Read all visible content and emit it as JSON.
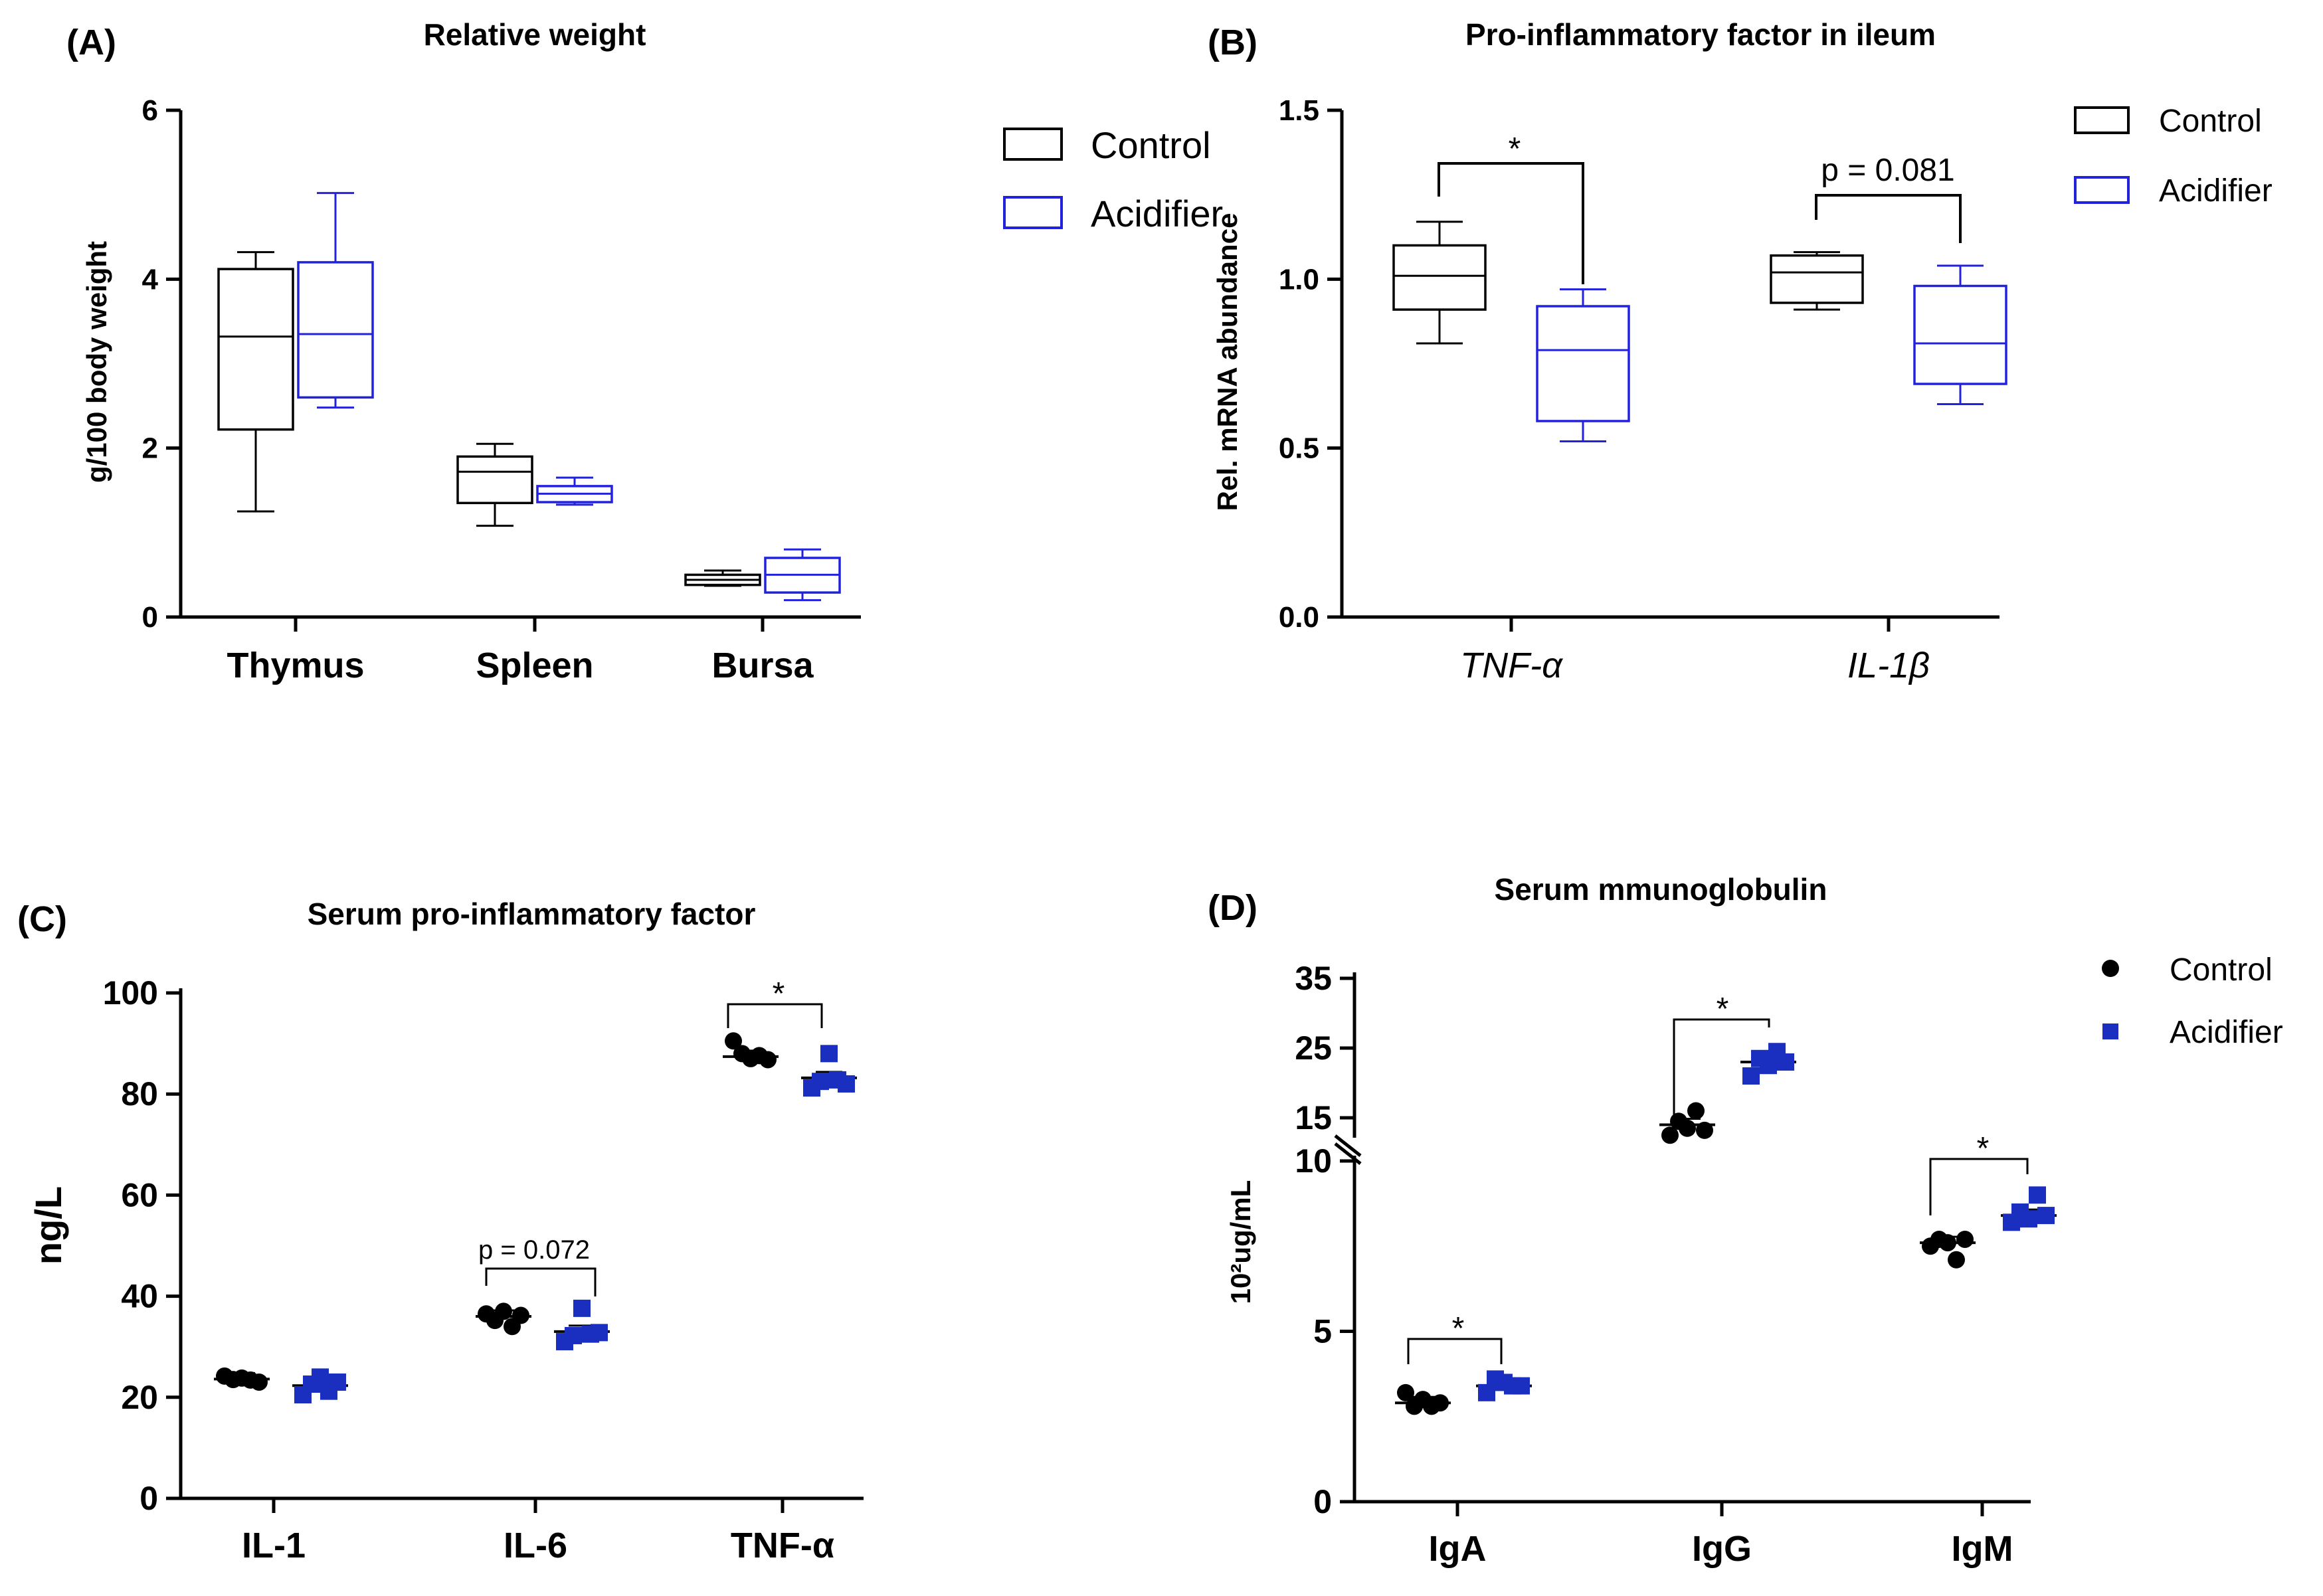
{
  "colors": {
    "control": "#000000",
    "acidifier_line": "#2222dd",
    "acidifier_fill": "#1a2fc0"
  },
  "chart_data": [
    {
      "panel_label": "(A)",
      "type": "box",
      "title": "Relative weight",
      "ylabel": "g/100 body weight",
      "ylim": [
        0,
        6
      ],
      "yticks": [
        "0",
        "2",
        "4",
        "6"
      ],
      "categories": [
        "Thymus",
        "Spleen",
        "Bursa"
      ],
      "legend": [
        "Control",
        "Acidifier"
      ],
      "series": [
        {
          "name": "Control",
          "boxes": [
            {
              "min": 1.25,
              "q1": 2.22,
              "median": 3.32,
              "q3": 4.12,
              "max": 4.32
            },
            {
              "min": 1.08,
              "q1": 1.35,
              "median": 1.72,
              "q3": 1.9,
              "max": 2.05
            },
            {
              "min": 0.37,
              "q1": 0.38,
              "median": 0.44,
              "q3": 0.5,
              "max": 0.55
            }
          ]
        },
        {
          "name": "Acidifier",
          "boxes": [
            {
              "min": 2.48,
              "q1": 2.6,
              "median": 3.35,
              "q3": 4.2,
              "max": 5.02
            },
            {
              "min": 1.33,
              "q1": 1.36,
              "median": 1.46,
              "q3": 1.55,
              "max": 1.65
            },
            {
              "min": 0.2,
              "q1": 0.29,
              "median": 0.5,
              "q3": 0.7,
              "max": 0.8
            }
          ]
        }
      ]
    },
    {
      "panel_label": "(B)",
      "type": "box",
      "title": "Pro-inflammatory factor in ileum",
      "ylabel": "Rel. mRNA abundance",
      "ylim": [
        0,
        1.5
      ],
      "yticks": [
        "0.0",
        "0.5",
        "1.0",
        "1.5"
      ],
      "categories": [
        "TNF-α",
        "IL-1β"
      ],
      "legend": [
        "Control",
        "Acidifier"
      ],
      "annotations": [
        "*",
        "p = 0.081"
      ],
      "series": [
        {
          "name": "Control",
          "boxes": [
            {
              "min": 0.81,
              "q1": 0.91,
              "median": 1.01,
              "q3": 1.1,
              "max": 1.17
            },
            {
              "min": 0.91,
              "q1": 0.93,
              "median": 1.02,
              "q3": 1.07,
              "max": 1.08
            }
          ]
        },
        {
          "name": "Acidifier",
          "boxes": [
            {
              "min": 0.52,
              "q1": 0.58,
              "median": 0.79,
              "q3": 0.92,
              "max": 0.97
            },
            {
              "min": 0.63,
              "q1": 0.69,
              "median": 0.81,
              "q3": 0.98,
              "max": 1.04
            }
          ]
        }
      ]
    },
    {
      "panel_label": "(C)",
      "type": "scatter",
      "title": "Serum pro-inflammatory factor",
      "ylabel": "ng/L",
      "ylim": [
        0,
        100
      ],
      "yticks": [
        "0",
        "20",
        "40",
        "60",
        "80",
        "100"
      ],
      "categories": [
        "IL-1",
        "IL-6",
        "TNF-α"
      ],
      "annotations": [
        "p = 0.072",
        "*"
      ],
      "series": [
        {
          "name": "Control",
          "mean": [
            23.6,
            36.0,
            87.4
          ],
          "points": [
            [
              24.2,
              23.5,
              23.8,
              23.4,
              23.0
            ],
            [
              36.5,
              35.2,
              37.0,
              34.0,
              36.2
            ],
            [
              90.5,
              88.0,
              87.0,
              87.6,
              86.8
            ]
          ]
        },
        {
          "name": "Acidifier",
          "mean": [
            22.3,
            33.0,
            83.2
          ],
          "points": [
            [
              20.5,
              22.6,
              24.0,
              21.2,
              23.0
            ],
            [
              31.0,
              32.2,
              37.6,
              32.5,
              32.8
            ],
            [
              81.2,
              82.5,
              88.0,
              82.8,
              82.0
            ]
          ]
        }
      ]
    },
    {
      "panel_label": "(D)",
      "type": "scatter",
      "title": "Serum mmunoglobulin",
      "ylabel": "10²ug/mL",
      "ylim": [
        0,
        35
      ],
      "yaxis_break": [
        10,
        15
      ],
      "yticks": [
        "0",
        "5",
        "10",
        "15",
        "25",
        "35"
      ],
      "categories": [
        "IgA",
        "IgG",
        "IgM"
      ],
      "legend": [
        "Control",
        "Acidifier"
      ],
      "annotations": [
        "*",
        "*",
        "*"
      ],
      "series": [
        {
          "name": "Control",
          "mean": [
            2.9,
            14.0,
            7.6
          ],
          "points": [
            [
              3.2,
              2.8,
              3.0,
              2.8,
              2.9
            ],
            [
              12.5,
              14.5,
              13.5,
              16.0,
              13.2
            ],
            [
              7.5,
              7.7,
              7.6,
              7.1,
              7.7
            ]
          ]
        },
        {
          "name": "Acidifier",
          "mean": [
            3.4,
            23.0,
            8.4
          ],
          "points": [
            [
              3.2,
              3.6,
              3.5,
              3.4,
              3.4
            ],
            [
              21.0,
              23.5,
              22.5,
              24.5,
              23.0
            ],
            [
              8.2,
              8.5,
              8.3,
              9.0,
              8.4
            ]
          ]
        }
      ]
    }
  ]
}
